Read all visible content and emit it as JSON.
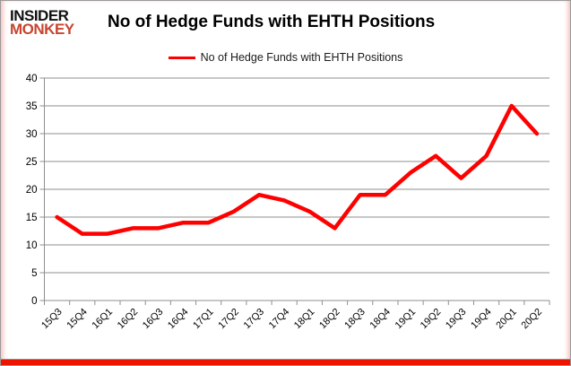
{
  "logo": {
    "line1": "INSIDER",
    "line2": "MONKEY"
  },
  "header": {
    "title": "No of Hedge Funds with EHTH Positions"
  },
  "legend": {
    "label": "No of Hedge Funds with EHTH Positions"
  },
  "colors": {
    "line": "#ff0000",
    "logo_red": "#c8452f",
    "bottom_bar_red": "#ee1400",
    "gridline": "#8f8f8f"
  },
  "chart_data": {
    "type": "line",
    "title": "No of Hedge Funds with EHTH Positions",
    "categories": [
      "15Q3",
      "15Q4",
      "16Q1",
      "16Q2",
      "16Q3",
      "16Q4",
      "17Q1",
      "17Q2",
      "17Q3",
      "17Q4",
      "18Q1",
      "18Q2",
      "18Q3",
      "18Q4",
      "19Q1",
      "19Q2",
      "19Q3",
      "19Q4",
      "20Q1",
      "20Q2"
    ],
    "series": [
      {
        "name": "No of Hedge Funds with EHTH Positions",
        "color": "#ff0000",
        "values": [
          15,
          12,
          12,
          13,
          13,
          14,
          14,
          16,
          19,
          18,
          16,
          13,
          19,
          19,
          23,
          26,
          22,
          26,
          35,
          30
        ]
      }
    ],
    "xlabel": "",
    "ylabel": "",
    "ylim": [
      0,
      40
    ],
    "ytick_step": 5,
    "yticks": [
      0,
      5,
      10,
      15,
      20,
      25,
      30,
      35,
      40
    ],
    "grid": true,
    "legend_position": "top-center"
  }
}
